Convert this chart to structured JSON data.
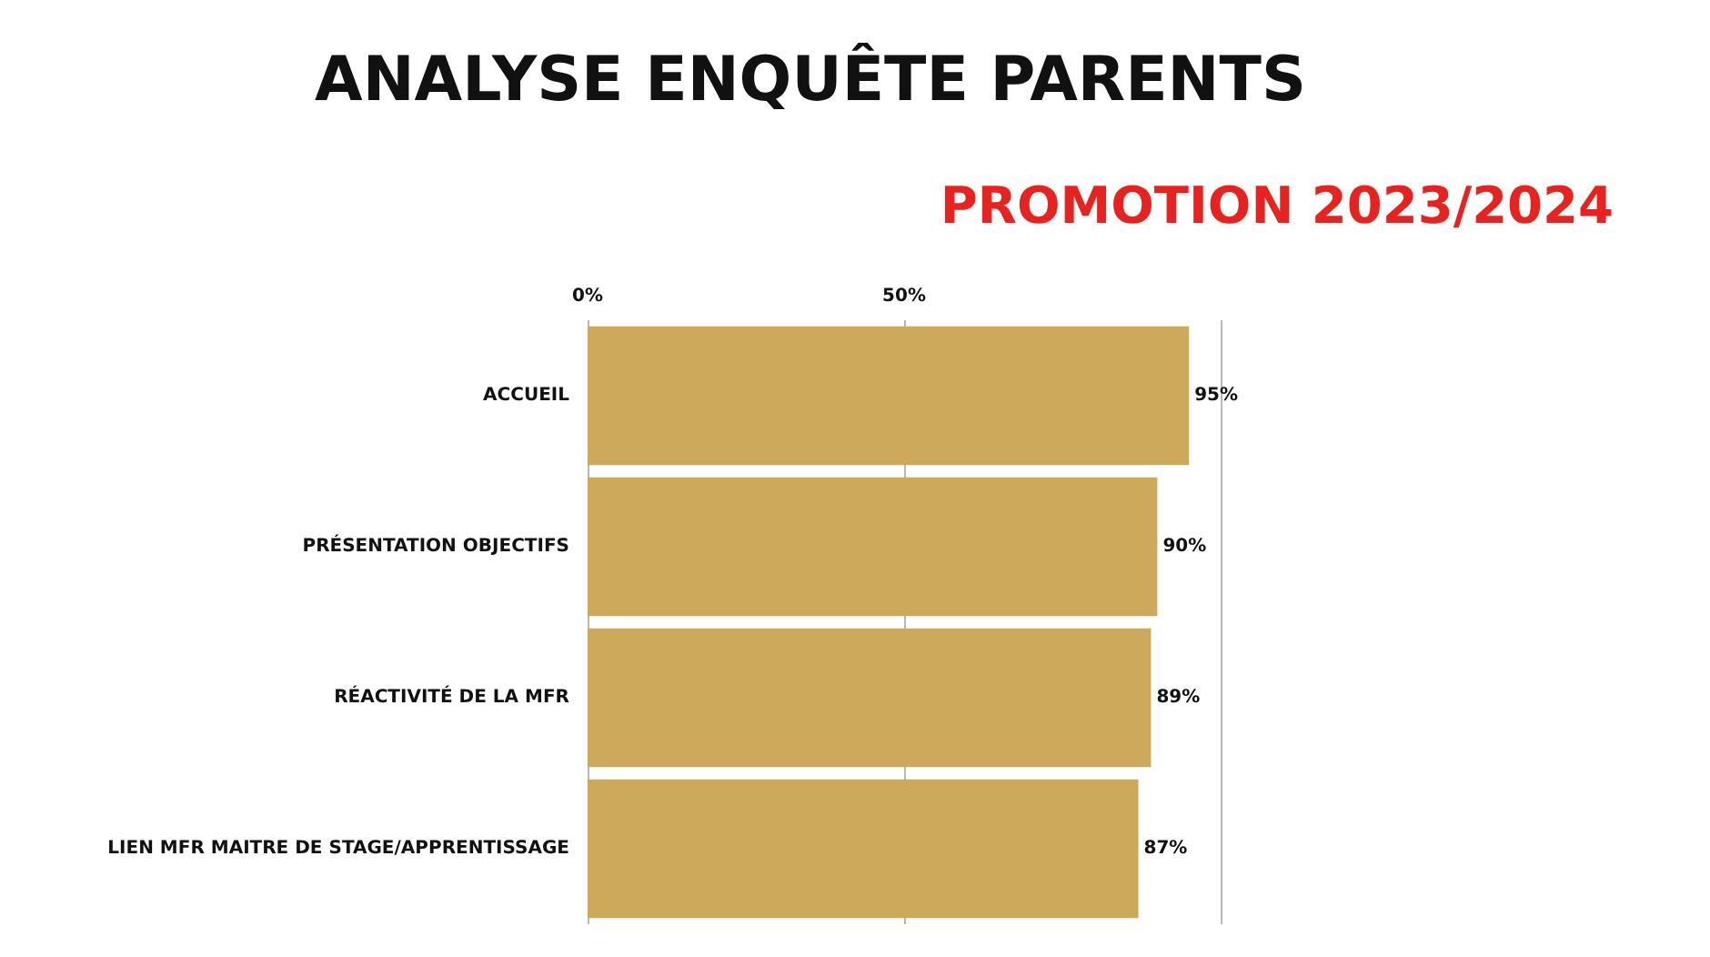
{
  "chart_data": {
    "type": "bar",
    "orientation": "horizontal",
    "title": "ANALYSE ENQUÊTE PARENTS",
    "subtitle": "PROMOTION 2023/2024",
    "categories": [
      "ACCUEIL",
      "PRÉSENTATION OBJECTIFS",
      "RÉACTIVITÉ DE LA MFR",
      "LIEN MFR MAITRE DE STAGE/APPRENTISSAGE"
    ],
    "values": [
      95,
      90,
      89,
      87
    ],
    "value_labels": [
      "95%",
      "90%",
      "89%",
      "87%"
    ],
    "color": "#cda95c",
    "xlim": [
      0,
      100
    ],
    "xticks": [
      {
        "value": 0,
        "label": "0%"
      },
      {
        "value": 50,
        "label": "50%"
      },
      {
        "value": 100,
        "label": null
      }
    ],
    "grid": "x"
  }
}
